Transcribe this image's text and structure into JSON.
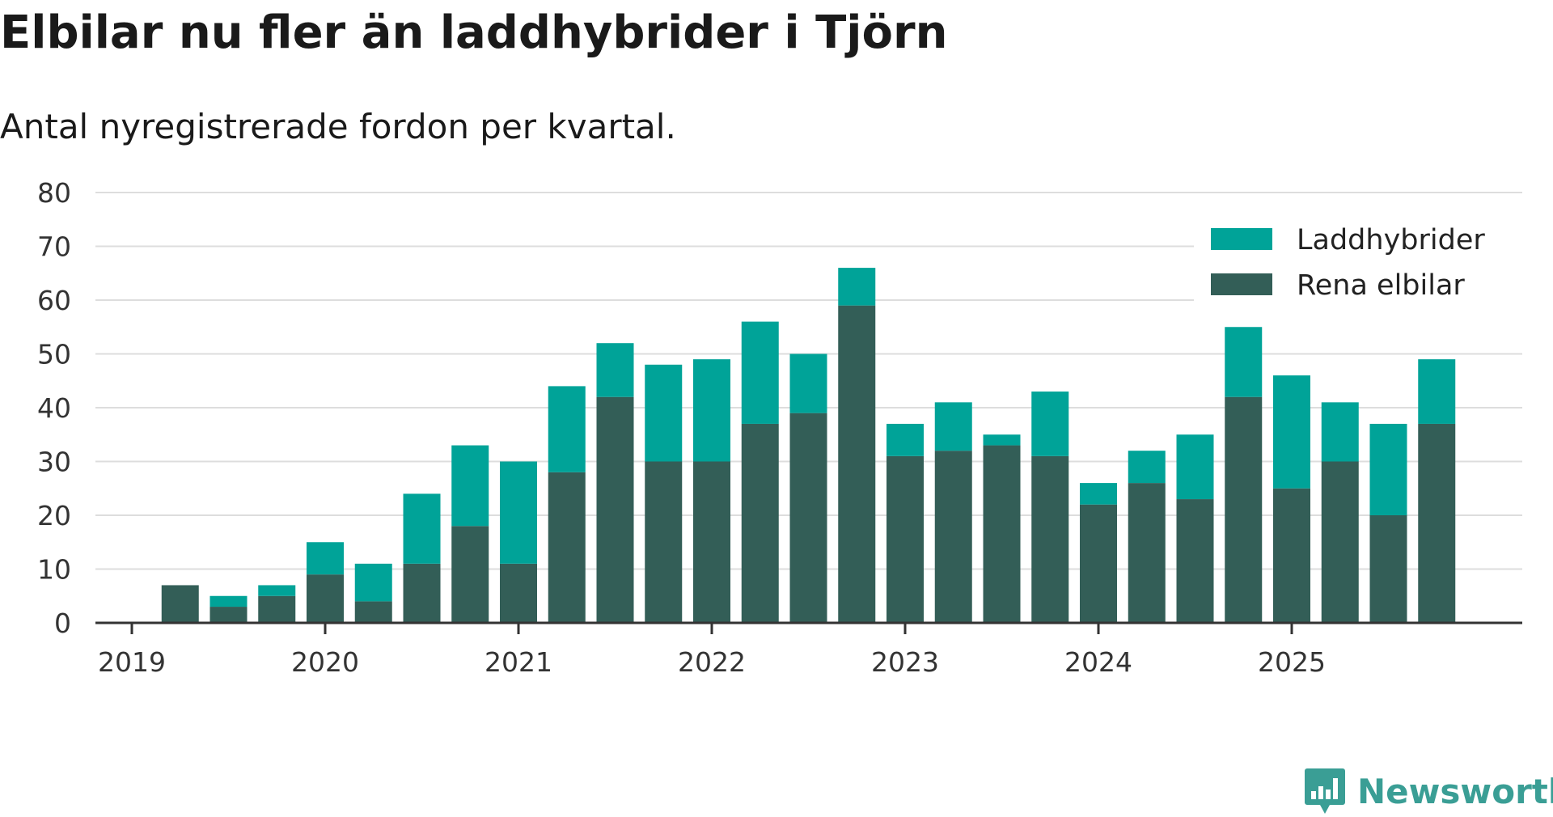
{
  "title": "Elbilar nu fler än laddhybrider i Tjörn",
  "subtitle": "Antal nyregistrerade fordon per kvartal.",
  "brand": "Newsworthy",
  "colors": {
    "laddhybrider": "#00a398",
    "rena_elbilar": "#335e57",
    "grid": "#dddddd",
    "axis": "#333333"
  },
  "chart_data": {
    "type": "bar",
    "stacked": true,
    "title": "Elbilar nu fler än laddhybrider i Tjörn",
    "subtitle": "Antal nyregistrerade fordon per kvartal.",
    "xlabel": "",
    "ylabel": "",
    "ylim": [
      0,
      80
    ],
    "yticks": [
      0,
      10,
      20,
      30,
      40,
      50,
      60,
      70,
      80
    ],
    "year_ticks": [
      "2019",
      "2020",
      "2021",
      "2022",
      "2023",
      "2024",
      "2025"
    ],
    "grid": true,
    "legend_position": "top-right",
    "categories": [
      "2019 Q1",
      "2019 Q2",
      "2019 Q3",
      "2019 Q4",
      "2020 Q1",
      "2020 Q2",
      "2020 Q3",
      "2020 Q4",
      "2021 Q1",
      "2021 Q2",
      "2021 Q3",
      "2021 Q4",
      "2022 Q1",
      "2022 Q2",
      "2022 Q3",
      "2022 Q4",
      "2023 Q1",
      "2023 Q2",
      "2023 Q3",
      "2023 Q4",
      "2024 Q1",
      "2024 Q2",
      "2024 Q3",
      "2024 Q4",
      "2025 Q1",
      "2025 Q2",
      "2025 Q3",
      "2025 Q4"
    ],
    "series": [
      {
        "name": "Rena elbilar",
        "values": [
          0,
          7,
          3,
          5,
          9,
          4,
          11,
          18,
          11,
          28,
          42,
          30,
          30,
          37,
          39,
          59,
          31,
          32,
          33,
          31,
          22,
          26,
          23,
          42,
          25,
          30,
          20,
          37
        ]
      },
      {
        "name": "Laddhybrider",
        "values": [
          0,
          0,
          2,
          2,
          6,
          7,
          13,
          15,
          19,
          16,
          10,
          18,
          19,
          19,
          11,
          7,
          6,
          9,
          2,
          12,
          4,
          6,
          12,
          13,
          21,
          11,
          17,
          12
        ]
      }
    ]
  }
}
